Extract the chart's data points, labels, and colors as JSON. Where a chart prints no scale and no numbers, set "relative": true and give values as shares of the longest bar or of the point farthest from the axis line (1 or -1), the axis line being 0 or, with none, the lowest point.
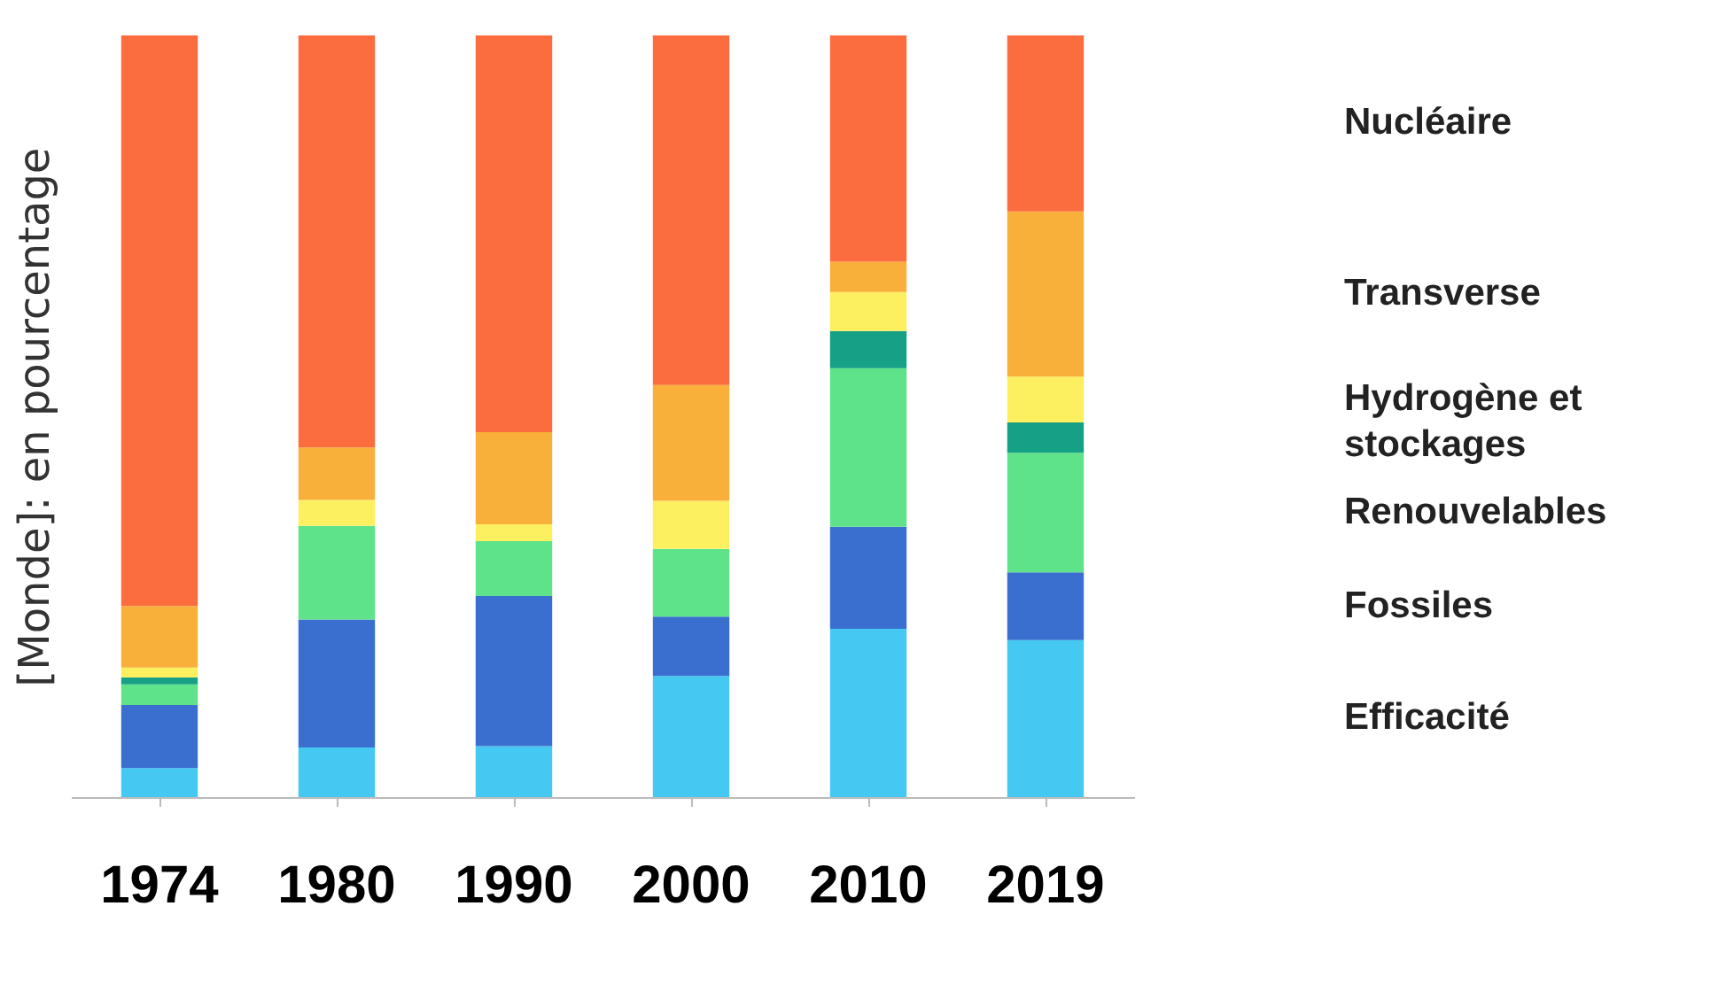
{
  "chart_data": {
    "type": "bar",
    "stacked": true,
    "relative": true,
    "ylabel": "[Monde]: en pourcentage",
    "categories": [
      "1974",
      "1980",
      "1990",
      "2000",
      "2010",
      "2019"
    ],
    "series": [
      {
        "name": "Efficacité",
        "color": "#45c8f2",
        "values": [
          0.038,
          0.065,
          0.067,
          0.159,
          0.221,
          0.206
        ]
      },
      {
        "name": "Fossiles",
        "color": "#3a6fd0",
        "values": [
          0.083,
          0.168,
          0.197,
          0.078,
          0.134,
          0.089
        ]
      },
      {
        "name": "Renouvelables",
        "color": "#5ee38a",
        "values": [
          0.027,
          0.123,
          0.072,
          0.089,
          0.208,
          0.157
        ]
      },
      {
        "color": "#16a085",
        "values": [
          0.009,
          0,
          0,
          0,
          0.049,
          0.04
        ]
      },
      {
        "name": "Hydrogène et stockages",
        "color": "#fdf060",
        "values": [
          0.013,
          0.034,
          0.022,
          0.063,
          0.051,
          0.06
        ]
      },
      {
        "name": "Transverse",
        "color": "#f9b03a",
        "values": [
          0.081,
          0.069,
          0.121,
          0.152,
          0.04,
          0.217
        ]
      },
      {
        "name": "Nucléaire",
        "color": "#fb6c3e",
        "values": [
          0.749,
          0.541,
          0.521,
          0.459,
          0.297,
          0.231
        ]
      }
    ],
    "legend": "right"
  }
}
